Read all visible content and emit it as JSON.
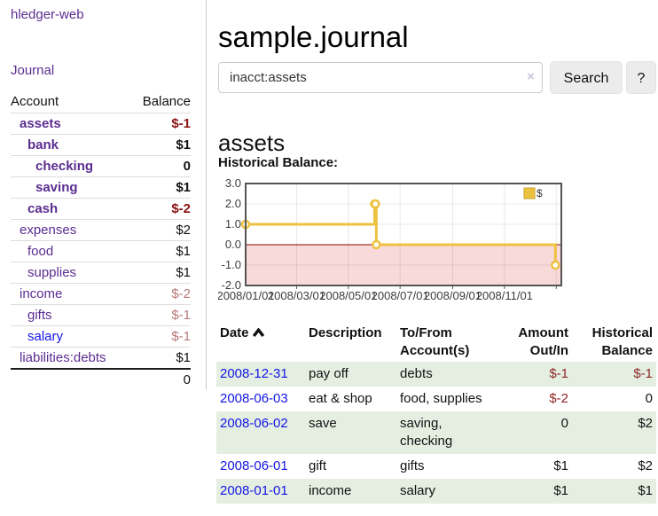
{
  "sidebar": {
    "brand": "hledger-web",
    "nav": {
      "journal": "Journal"
    },
    "accounts_table": {
      "col_account": "Account",
      "col_balance": "Balance",
      "rows": [
        {
          "name": "assets",
          "indent": 1,
          "bold": true,
          "balance": "$-1",
          "balance_style": "neg-bold"
        },
        {
          "name": "bank",
          "indent": 2,
          "bold": true,
          "balance": "$1",
          "balance_style": "pos-bold"
        },
        {
          "name": "checking",
          "indent": 3,
          "bold": true,
          "balance": "0",
          "balance_style": "pos-bold"
        },
        {
          "name": "saving",
          "indent": 3,
          "bold": true,
          "balance": "$1",
          "balance_style": "pos-bold"
        },
        {
          "name": "cash",
          "indent": 2,
          "bold": true,
          "balance": "$-2",
          "balance_style": "neg-bold"
        },
        {
          "name": "expenses",
          "indent": 1,
          "bold": false,
          "balance": "$2",
          "balance_style": "pos"
        },
        {
          "name": "food",
          "indent": 2,
          "bold": false,
          "balance": "$1",
          "balance_style": "pos"
        },
        {
          "name": "supplies",
          "indent": 2,
          "bold": false,
          "balance": "$1",
          "balance_style": "pos"
        },
        {
          "name": "income",
          "indent": 1,
          "bold": false,
          "balance": "$-2",
          "balance_style": "neg-muted"
        },
        {
          "name": "gifts",
          "indent": 2,
          "bold": false,
          "balance": "$-1",
          "balance_style": "neg-muted"
        },
        {
          "name": "salary",
          "indent": 2,
          "bold": false,
          "link_color": "blue",
          "balance": "$-1",
          "balance_style": "neg-muted"
        },
        {
          "name": "liabilities:debts",
          "indent": 1,
          "bold": false,
          "balance": "$1",
          "balance_style": "pos"
        }
      ],
      "total": "0"
    }
  },
  "header": {
    "title": "sample.journal"
  },
  "search": {
    "value": "inacct:assets",
    "clear_icon": "×",
    "button_label": "Search",
    "help_label": "?"
  },
  "account_page": {
    "heading": "assets",
    "chart_label": "Historical Balance:"
  },
  "chart_data": {
    "type": "line",
    "step": true,
    "title": "Historical Balance:",
    "series": [
      {
        "name": "$",
        "color": "#edc240",
        "points": [
          {
            "date": "2008-01-01",
            "day": 0,
            "value": 1
          },
          {
            "date": "2008-06-01",
            "day": 152,
            "value": 2
          },
          {
            "date": "2008-06-02",
            "day": 153,
            "value": 2
          },
          {
            "date": "2008-06-03",
            "day": 154,
            "value": 0
          },
          {
            "date": "2008-12-31",
            "day": 365,
            "value": -1
          }
        ]
      }
    ],
    "x_ticks": [
      {
        "label": "2008/01/01",
        "day": 0
      },
      {
        "label": "2008/03/01",
        "day": 60
      },
      {
        "label": "2008/05/01",
        "day": 121
      },
      {
        "label": "2008/07/01",
        "day": 182
      },
      {
        "label": "2008/09/01",
        "day": 244
      },
      {
        "label": "2008/11/01",
        "day": 305
      }
    ],
    "x_gridline_days": [
      60,
      121,
      182,
      244,
      305,
      366
    ],
    "y_ticks": [
      {
        "label": "3.0",
        "value": 3
      },
      {
        "label": "2.0",
        "value": 2
      },
      {
        "label": "1.0",
        "value": 1
      },
      {
        "label": "0.0",
        "value": 0
      },
      {
        "label": "-1.0",
        "value": -1
      },
      {
        "label": "-2.0",
        "value": -2
      }
    ],
    "ylim": [
      -2,
      3
    ],
    "xlim_days": [
      0,
      372
    ],
    "legend": {
      "label": "$",
      "position": "top-right"
    },
    "colors": {
      "line": "#edc240",
      "marker_fill": "#ffffff",
      "negative_region": "#f9dada",
      "zero_line": "#8b0000",
      "grid": "rgba(0,0,0,0.09)",
      "border": "#545454"
    }
  },
  "transactions": {
    "columns": {
      "date": "Date",
      "description": "Description",
      "accounts": "To/From Account(s)",
      "amount": "Amount Out/In",
      "balance": "Historical Balance"
    },
    "sort_icon": "chevron-up",
    "rows": [
      {
        "date": "2008-12-31",
        "description": "pay off",
        "accounts": "debts",
        "amount": "$-1",
        "amount_negative": true,
        "balance": "$-1",
        "balance_negative": true
      },
      {
        "date": "2008-06-03",
        "description": "eat & shop",
        "accounts": "food, supplies",
        "amount": "$-2",
        "amount_negative": true,
        "balance": "0",
        "balance_negative": false
      },
      {
        "date": "2008-06-02",
        "description": "save",
        "accounts": "saving, checking",
        "amount": "0",
        "amount_negative": false,
        "balance": "$2",
        "balance_negative": false
      },
      {
        "date": "2008-06-01",
        "description": "gift",
        "accounts": "gifts",
        "amount": "$1",
        "amount_negative": false,
        "balance": "$2",
        "balance_negative": false
      },
      {
        "date": "2008-01-01",
        "description": "income",
        "accounts": "salary",
        "amount": "$1",
        "amount_negative": false,
        "balance": "$1",
        "balance_negative": false
      }
    ]
  },
  "colors": {
    "accent_purple": "#5b2d90",
    "link_blue": "#1414e6",
    "negative_strong": "#8b1212",
    "negative_soft": "#b87878",
    "negative_table": "#8f2626",
    "row_green": "#e4efe2",
    "chart_yellow": "#edc240"
  }
}
